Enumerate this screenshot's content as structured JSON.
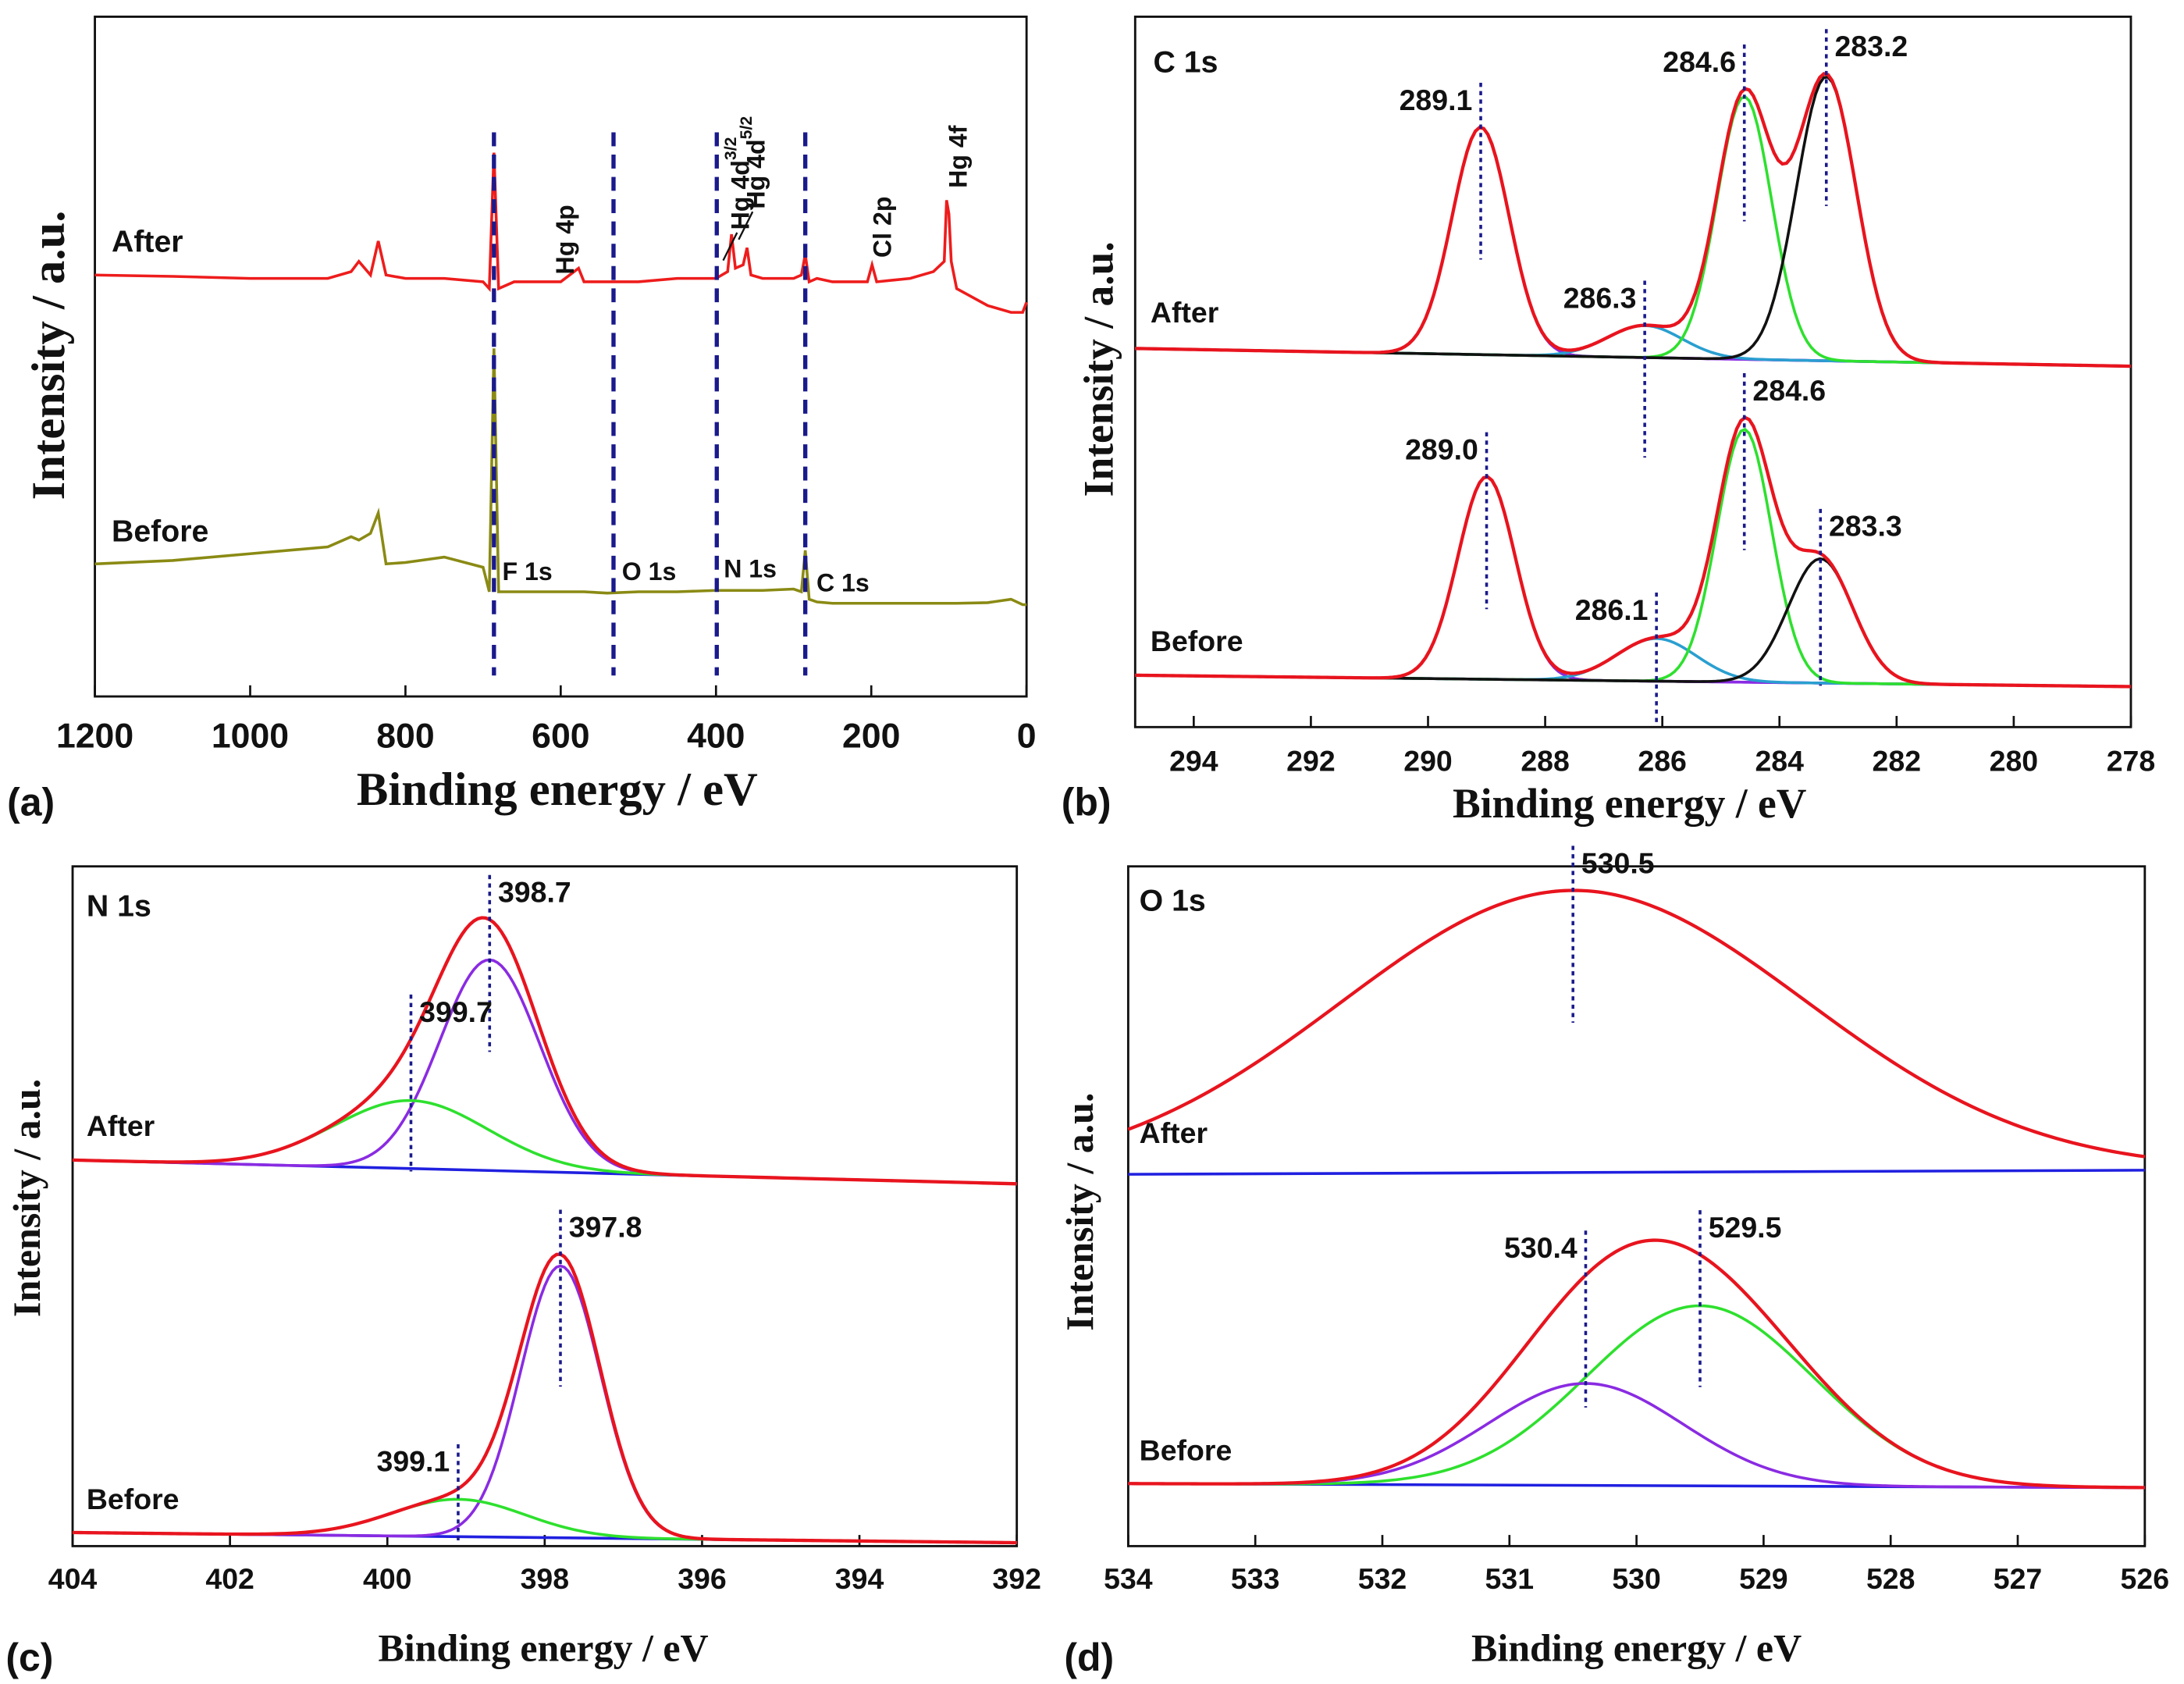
{
  "chart_data": [
    {
      "type": "line",
      "panel": "(a)",
      "xlabel": "Binding energy / eV",
      "ylabel": "Intensity / a.u.",
      "xlim": [
        1200,
        0
      ],
      "xticks": [
        1200,
        1000,
        800,
        600,
        400,
        200,
        0
      ],
      "ylim": [
        0,
        100
      ],
      "x": [
        1200,
        1100,
        1000,
        900,
        870,
        860,
        845,
        835,
        825,
        800,
        750,
        700,
        692,
        686,
        680,
        660,
        600,
        577,
        570,
        540,
        500,
        450,
        400,
        385,
        380,
        375,
        365,
        360,
        355,
        340,
        300,
        290,
        285,
        280,
        270,
        250,
        205,
        199,
        193,
        150,
        120,
        106,
        103,
        100,
        97,
        90,
        50,
        20,
        5,
        0
      ],
      "series": [
        {
          "name": "After",
          "color": "#ee1c1c",
          "values": [
            62,
            61.8,
            61.5,
            61.5,
            62.5,
            64,
            62,
            67,
            62,
            61.5,
            61.5,
            61,
            60,
            80,
            60,
            61,
            61,
            63,
            61,
            61,
            61,
            61.5,
            61.5,
            62.5,
            68,
            63,
            63.5,
            66,
            62,
            61.5,
            61.5,
            62,
            65,
            61,
            61.5,
            61,
            61,
            63.5,
            61,
            61.5,
            62.5,
            64,
            73,
            71,
            64,
            60,
            57.5,
            56.5,
            56.5,
            58
          ]
        },
        {
          "name": "Before",
          "color": "#8a8a14",
          "values": [
            19.5,
            20,
            21,
            22,
            23.5,
            23,
            24,
            27,
            19.5,
            19.7,
            20.5,
            19,
            15.4,
            51.2,
            15.4,
            15.4,
            15.4,
            15.4,
            15.4,
            15.2,
            15.4,
            15.4,
            15.6,
            15.6,
            15.6,
            15.6,
            15.6,
            15.6,
            15.6,
            15.6,
            15.8,
            15.4,
            21.5,
            14.3,
            13.9,
            13.7,
            13.7,
            13.7,
            13.7,
            13.7,
            13.7,
            13.7,
            13.7,
            13.7,
            13.7,
            13.7,
            13.8,
            14.3,
            13.5,
            13.5
          ]
        }
      ],
      "annotations": [
        {
          "label": "F 1s",
          "x": 686,
          "line": true
        },
        {
          "label": "O 1s",
          "x": 532,
          "line": true
        },
        {
          "label": "N 1s",
          "x": 399,
          "line": true
        },
        {
          "label": "C 1s",
          "x": 285,
          "line": true
        },
        {
          "label": "Hg 4p",
          "x": 577
        },
        {
          "label": "Hg 4d",
          "sup": "3/2",
          "x": 380
        },
        {
          "label": "Hg 4d",
          "sup": "5/2",
          "x": 360
        },
        {
          "label": "Cl 2p",
          "x": 199
        },
        {
          "label": "Hg 4f",
          "x": 101
        }
      ]
    },
    {
      "type": "fit",
      "panel": "(b)",
      "title": "C 1s",
      "xlabel": "Binding energy / eV",
      "ylabel": "Intensity / a.u.",
      "xlim": [
        295,
        278
      ],
      "xticks": [
        294,
        292,
        290,
        288,
        286,
        284,
        282,
        280,
        278
      ],
      "ylim": [
        0,
        100
      ],
      "envelope_color": "#e8141e",
      "background_color": "#8a2be2",
      "groups": [
        {
          "name": "After",
          "background": [
            53.3,
            50.8
          ],
          "peaks": [
            {
              "label": "289.1",
              "center": 289.1,
              "height": 32,
              "fwhm": 1.15,
              "color": "#8a2be2"
            },
            {
              "label": "286.3",
              "center": 286.3,
              "height": 4.5,
              "fwhm": 1.5,
              "color": "#2a9fd0"
            },
            {
              "label": "284.6",
              "center": 284.6,
              "height": 37,
              "fwhm": 1.1,
              "color": "#2ee02e"
            },
            {
              "label": "283.2",
              "center": 283.2,
              "height": 40,
              "fwhm": 1.2,
              "color": "#111111"
            }
          ]
        },
        {
          "name": "Before",
          "background": [
            7.3,
            5.7
          ],
          "peaks": [
            {
              "label": "289.0",
              "center": 289.0,
              "height": 28.5,
              "fwhm": 1.15,
              "color": "#8a2be2"
            },
            {
              "label": "286.1",
              "center": 286.1,
              "height": 6,
              "fwhm": 1.6,
              "color": "#2a9fd0"
            },
            {
              "label": "284.6",
              "center": 284.6,
              "height": 35.6,
              "fwhm": 1.1,
              "color": "#2ee02e"
            },
            {
              "label": "283.3",
              "center": 283.3,
              "height": 17.5,
              "fwhm": 1.3,
              "color": "#111111"
            }
          ]
        }
      ]
    },
    {
      "type": "fit",
      "panel": "(c)",
      "title": "N 1s",
      "xlabel": "Binding energy / eV",
      "ylabel": "Intensity / a.u.",
      "xlim": [
        404,
        392
      ],
      "xticks": [
        404,
        402,
        400,
        398,
        396,
        394,
        392
      ],
      "ylim": [
        0,
        100
      ],
      "envelope_color": "#e8141e",
      "background_color": "#2020e0",
      "groups": [
        {
          "name": "After",
          "background": [
            56.8,
            53.3
          ],
          "peaks": [
            {
              "label": "398.7",
              "center": 398.7,
              "height": 31,
              "fwhm": 1.5,
              "color": "#8a2be2"
            },
            {
              "label": "399.7",
              "center": 399.7,
              "height": 10,
              "fwhm": 2.3,
              "color": "#2ee02e"
            }
          ]
        },
        {
          "name": "Before",
          "background": [
            2,
            0.5
          ],
          "peaks": [
            {
              "label": "397.8",
              "center": 397.8,
              "height": 40,
              "fwhm": 1.2,
              "color": "#8a2be2"
            },
            {
              "label": "399.1",
              "center": 399.1,
              "height": 5.5,
              "fwhm": 2,
              "color": "#2ee02e"
            }
          ]
        }
      ]
    },
    {
      "type": "fit",
      "panel": "(d)",
      "title": "O 1s",
      "xlabel": "Binding energy / eV",
      "ylabel": "Intensity / a.u.",
      "xlim": [
        534,
        526
      ],
      "xticks": [
        534,
        533,
        532,
        531,
        530,
        529,
        528,
        527,
        526
      ],
      "ylim": [
        0,
        100
      ],
      "envelope_color": "#e8141e",
      "background_color": "#2020e0",
      "groups": [
        {
          "name": "After",
          "background": [
            54.7,
            55.3
          ],
          "peaks": [
            {
              "label": "530.5",
              "center": 530.5,
              "height": 41.5,
              "fwhm": 4.3,
              "color": "#e8141e"
            }
          ]
        },
        {
          "name": "Before",
          "background": [
            9.2,
            8.6
          ],
          "peaks": [
            {
              "label": "529.5",
              "center": 529.5,
              "height": 26.5,
              "fwhm": 2.1,
              "color": "#2ee02e"
            },
            {
              "label": "530.4",
              "center": 530.4,
              "height": 15,
              "fwhm": 1.8,
              "color": "#8a2be2"
            }
          ]
        }
      ]
    }
  ]
}
